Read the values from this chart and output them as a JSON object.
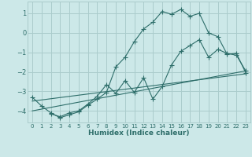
{
  "xlabel": "Humidex (Indice chaleur)",
  "bg_color": "#cce8e8",
  "grid_color": "#aacccc",
  "line_color": "#2e6e6a",
  "xlim": [
    -0.5,
    23.5
  ],
  "ylim": [
    -4.6,
    1.6
  ],
  "yticks": [
    -4,
    -3,
    -2,
    -1,
    0,
    1
  ],
  "xticks": [
    0,
    1,
    2,
    3,
    4,
    5,
    6,
    7,
    8,
    9,
    10,
    11,
    12,
    13,
    14,
    15,
    16,
    17,
    18,
    19,
    20,
    21,
    22,
    23
  ],
  "line1_x": [
    0,
    1,
    2,
    3,
    4,
    5,
    6,
    7,
    8,
    9,
    10,
    11,
    12,
    13,
    14,
    15,
    16,
    17,
    18,
    19,
    20,
    21,
    22,
    23
  ],
  "line1_y": [
    -3.3,
    -3.75,
    -4.1,
    -4.35,
    -4.2,
    -4.05,
    -3.7,
    -3.4,
    -3.05,
    -1.75,
    -1.25,
    -0.45,
    0.2,
    0.55,
    1.1,
    0.95,
    1.2,
    0.85,
    1.0,
    0.0,
    -0.2,
    -1.1,
    -1.05,
    -2.05
  ],
  "line2_x": [
    2,
    3,
    4,
    5,
    6,
    7,
    8,
    9,
    10,
    11,
    12,
    13,
    14,
    15,
    16,
    17,
    18,
    19,
    20,
    21,
    22,
    23
  ],
  "line2_y": [
    -4.15,
    -4.3,
    -4.1,
    -4.0,
    -3.65,
    -3.25,
    -2.65,
    -3.1,
    -2.45,
    -3.05,
    -2.3,
    -3.4,
    -2.75,
    -1.65,
    -0.95,
    -0.65,
    -0.35,
    -1.25,
    -0.85,
    -1.05,
    -1.15,
    -1.95
  ],
  "line3_x": [
    0,
    23
  ],
  "line3_y": [
    -3.5,
    -2.1
  ],
  "line4_x": [
    0,
    23
  ],
  "line4_y": [
    -4.0,
    -1.95
  ],
  "markersize": 3
}
